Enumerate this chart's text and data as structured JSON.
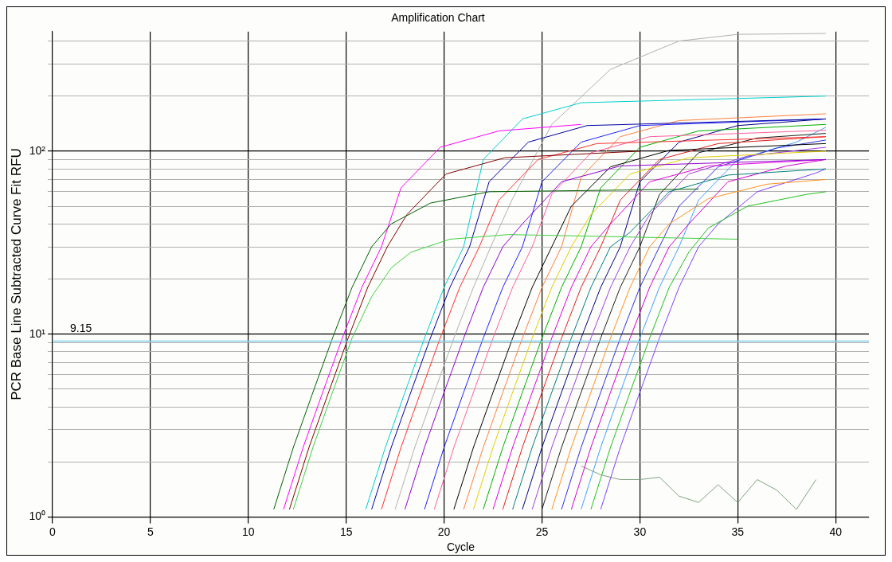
{
  "chart_data": {
    "type": "line",
    "title": "Amplification Chart",
    "xlabel": "Cycle",
    "ylabel": "PCR Base Line Subtracted Curve Fit RFU",
    "xlim": [
      0,
      41.7
    ],
    "xticks": [
      0,
      5,
      10,
      15,
      20,
      25,
      30,
      35,
      40
    ],
    "ylim": [
      1,
      450
    ],
    "log": "y",
    "yticks": [
      {
        "value": 1,
        "label": "10⁰"
      },
      {
        "value": 2,
        "label": null
      },
      {
        "value": 3,
        "label": null
      },
      {
        "value": 4,
        "label": null
      },
      {
        "value": 5,
        "label": null
      },
      {
        "value": 6,
        "label": null
      },
      {
        "value": 7,
        "label": null
      },
      {
        "value": 8,
        "label": null
      },
      {
        "value": 9,
        "label": null
      },
      {
        "value": 10,
        "label": "10¹"
      },
      {
        "value": 20,
        "label": null
      },
      {
        "value": 30,
        "label": null
      },
      {
        "value": 40,
        "label": null
      },
      {
        "value": 50,
        "label": null
      },
      {
        "value": 60,
        "label": null
      },
      {
        "value": 70,
        "label": null
      },
      {
        "value": 80,
        "label": null
      },
      {
        "value": 90,
        "label": null
      },
      {
        "value": 100,
        "label": "10²"
      },
      {
        "value": 200,
        "label": null
      },
      {
        "value": 300,
        "label": null
      },
      {
        "value": 400,
        "label": null
      }
    ],
    "grid": true,
    "legend": false,
    "marker": "none",
    "line_style": "solid",
    "ref_lines": [
      {
        "axis": "y",
        "value": 9.15,
        "label": "9.15",
        "color": "#80d0f0"
      }
    ],
    "series": [
      {
        "color": "#006000",
        "x": [
          11.3,
          12.3,
          13.3,
          14.3,
          15.3,
          16.3,
          17.3,
          19.3,
          22.3,
          33
        ],
        "values": [
          1.1,
          2.4,
          4.8,
          9.5,
          18,
          30,
          40,
          52,
          60,
          62
        ]
      },
      {
        "color": "#ff00ff",
        "x": [
          11.8,
          12.8,
          13.8,
          14.8,
          15.8,
          16.8,
          17.8,
          19.8,
          22.8,
          27
        ],
        "values": [
          1.1,
          2.4,
          4.8,
          9.5,
          18,
          30,
          63,
          105,
          129,
          140
        ]
      },
      {
        "color": "#800000",
        "x": [
          12.1,
          13.1,
          14.1,
          15.1,
          16.1,
          17.1,
          18.1,
          20.1,
          23.1,
          30
        ],
        "values": [
          1.1,
          2.4,
          4.8,
          9.5,
          18,
          30,
          45,
          75,
          92,
          100
        ]
      },
      {
        "color": "#40d040",
        "x": [
          12.3,
          13.3,
          14.3,
          15.3,
          16.3,
          17.3,
          18.3,
          20.3,
          23.3,
          35
        ],
        "values": [
          1.1,
          2.4,
          4.8,
          9.5,
          16,
          23,
          28,
          33,
          35,
          33
        ]
      },
      {
        "color": "#00d0d0",
        "x": [
          16,
          17,
          18,
          19,
          20,
          21,
          22,
          24,
          27,
          39.5
        ],
        "values": [
          1.1,
          2.4,
          4.8,
          9.5,
          18,
          30,
          90,
          150,
          184,
          200
        ]
      },
      {
        "color": "#0000a0",
        "x": [
          16.3,
          17.3,
          18.3,
          19.3,
          20.3,
          21.3,
          22.3,
          24.3,
          27.3,
          39.5
        ],
        "values": [
          1.1,
          2.4,
          4.8,
          9.5,
          18,
          30,
          68,
          112,
          138,
          150
        ]
      },
      {
        "color": "#ff3030",
        "x": [
          16.8,
          17.8,
          18.8,
          19.8,
          20.8,
          21.8,
          22.8,
          24.8,
          27.8,
          39.5
        ],
        "values": [
          1.1,
          2.4,
          4.8,
          9.5,
          18,
          30,
          54,
          90,
          110,
          120
        ]
      },
      {
        "color": "#b0b0b0",
        "x": [
          17.5,
          18.5,
          19.5,
          20.5,
          21.5,
          22.5,
          23.5,
          25.5,
          28.5,
          32,
          35,
          39.5
        ],
        "values": [
          1.1,
          2.4,
          4.8,
          9.5,
          18,
          32,
          55,
          140,
          280,
          400,
          435,
          440
        ]
      },
      {
        "color": "#9000d0",
        "x": [
          18,
          19,
          20,
          21,
          22,
          23,
          24,
          26,
          29,
          39.5
        ],
        "values": [
          1.1,
          2.4,
          4.8,
          9.5,
          18,
          30,
          40,
          68,
          83,
          90
        ]
      },
      {
        "color": "#2020ff",
        "x": [
          19,
          20,
          21,
          22,
          23,
          24,
          25,
          27,
          30,
          39.5
        ],
        "values": [
          1.1,
          2.4,
          4.8,
          9.5,
          18,
          30,
          68,
          112,
          138,
          150
        ]
      },
      {
        "color": "#ff60a0",
        "x": [
          19.5,
          20.5,
          21.5,
          22.5,
          23.5,
          24.5,
          25.5,
          27.5,
          30.5,
          39.5
        ],
        "values": [
          1.1,
          2.4,
          4.8,
          9.5,
          18,
          30,
          58,
          98,
          120,
          130
        ]
      },
      {
        "color": "#000000",
        "x": [
          20.5,
          21.5,
          22.5,
          23.5,
          24.5,
          25.5,
          26.5,
          28.5,
          31.5,
          39.5
        ],
        "values": [
          1.1,
          2.4,
          4.8,
          9.5,
          18,
          30,
          50,
          82,
          101,
          110
        ]
      },
      {
        "color": "#ff8040",
        "x": [
          21,
          22,
          23,
          24,
          25,
          26,
          27,
          29,
          32,
          39.5
        ],
        "values": [
          1.1,
          2.4,
          4.8,
          9.5,
          18,
          30,
          72,
          120,
          147,
          160
        ]
      },
      {
        "color": "#e0d000",
        "x": [
          21.5,
          22.5,
          23.5,
          24.5,
          25.5,
          26.5,
          27.5,
          29.5,
          32.5,
          39.5
        ],
        "values": [
          1.1,
          2.4,
          4.8,
          9.5,
          18,
          30,
          45,
          75,
          92,
          100
        ]
      },
      {
        "color": "#00b000",
        "x": [
          22,
          23,
          24,
          25,
          26,
          27,
          28,
          30,
          33,
          39.5
        ],
        "values": [
          1.1,
          2.4,
          4.8,
          9.5,
          18,
          30,
          63,
          105,
          129,
          140
        ]
      },
      {
        "color": "#e000e0",
        "x": [
          22.5,
          23.5,
          24.5,
          25.5,
          26.5,
          27.5,
          28.5,
          30.5,
          33.5,
          39.5
        ],
        "values": [
          1.1,
          2.4,
          4.8,
          9.5,
          18,
          30,
          40,
          68,
          83,
          90
        ]
      },
      {
        "color": "#e02020",
        "x": [
          23,
          24,
          25,
          26,
          27,
          28,
          29,
          31,
          34,
          39.5
        ],
        "values": [
          1.1,
          2.4,
          4.8,
          9.5,
          18,
          30,
          54,
          90,
          110,
          120
        ]
      },
      {
        "color": "#008080",
        "x": [
          23.5,
          24.5,
          25.5,
          26.5,
          27.5,
          28.5,
          29.5,
          31.5,
          34.5,
          39.5
        ],
        "values": [
          1.1,
          2.4,
          4.8,
          9.5,
          18,
          30,
          36,
          60,
          74,
          80
        ]
      },
      {
        "color": "#000080",
        "x": [
          24,
          25,
          26,
          27,
          28,
          29,
          30,
          32,
          35,
          39.5
        ],
        "values": [
          1.1,
          2.4,
          4.8,
          9.5,
          18,
          30,
          68,
          112,
          138,
          150
        ]
      },
      {
        "color": "#a040e0",
        "x": [
          24.5,
          25.5,
          26.5,
          27.5,
          28.5,
          29.5,
          30.5,
          32.5,
          35.5,
          39.5
        ],
        "values": [
          1.1,
          2.4,
          4.8,
          9.5,
          18,
          30,
          45,
          75,
          94,
          105
        ]
      },
      {
        "color": "#202020",
        "x": [
          25,
          26,
          27,
          28,
          29,
          30,
          31,
          33,
          36,
          39.5
        ],
        "values": [
          1.1,
          2.4,
          4.8,
          9.5,
          18,
          30,
          58,
          98,
          118,
          125
        ]
      },
      {
        "color": "#ff9020",
        "x": [
          25.5,
          26.5,
          27.5,
          28.5,
          29.5,
          30.5,
          31.5,
          33.5,
          36.5,
          39.5
        ],
        "values": [
          1.1,
          2.4,
          4.8,
          9.5,
          18,
          30,
          40,
          55,
          66,
          70
        ]
      },
      {
        "color": "#3030e0",
        "x": [
          26,
          27,
          28,
          29,
          30,
          31,
          32,
          34,
          37,
          39.5
        ],
        "values": [
          1.1,
          2.4,
          4.8,
          9.5,
          18,
          30,
          50,
          82,
          104,
          115
        ]
      },
      {
        "color": "#d000d0",
        "x": [
          26.5,
          27.5,
          28.5,
          29.5,
          30.5,
          31.5,
          32.5,
          34.5,
          37.5,
          39.5
        ],
        "values": [
          1.1,
          2.4,
          4.8,
          9.5,
          18,
          30,
          40,
          68,
          83,
          90
        ]
      },
      {
        "color": "#40a0ff",
        "x": [
          27,
          28,
          29,
          30,
          31,
          32,
          33,
          35,
          38,
          39.5
        ],
        "values": [
          1.1,
          2.4,
          4.8,
          9.5,
          18,
          30,
          54,
          90,
          112,
          135
        ]
      },
      {
        "color": "#20c020",
        "x": [
          27.5,
          28.5,
          29.5,
          30.5,
          31.5,
          32.5,
          33.5,
          35.5,
          38.5,
          39.5
        ],
        "values": [
          1.1,
          2.4,
          4.8,
          9.5,
          18,
          28,
          38,
          50,
          58,
          60
        ]
      },
      {
        "color": "#8040ff",
        "x": [
          28,
          29,
          30,
          31,
          32,
          33,
          34,
          36,
          39,
          39.5
        ],
        "values": [
          1.1,
          2.4,
          4.8,
          9.5,
          18,
          30,
          40,
          60,
          76,
          80
        ]
      },
      {
        "color": "#80a080",
        "x": [
          27,
          28,
          29,
          30,
          31,
          32,
          33,
          34,
          35,
          36,
          37,
          38,
          39
        ],
        "values": [
          1.9,
          1.7,
          1.6,
          1.6,
          1.65,
          1.3,
          1.2,
          1.5,
          1.2,
          1.6,
          1.4,
          1.1,
          1.6
        ]
      }
    ]
  }
}
